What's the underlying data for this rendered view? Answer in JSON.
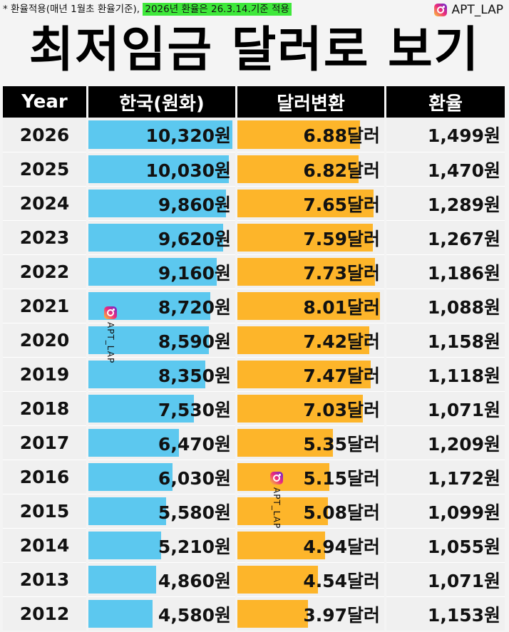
{
  "note": {
    "prefix": "* 환율적용(매년 1월초 환율기준),",
    "highlight": "2026년 환율은 26.3.14.기준 적용"
  },
  "brand": {
    "handle": "APT_LAP",
    "icon": "instagram-icon"
  },
  "title": "최저임금 달러로 보기",
  "colors": {
    "krw_bar": "#5cc8ef",
    "usd_bar": "#fdb52a",
    "header_bg": "#000000",
    "note_highlight": "#3ee83a"
  },
  "watermark": "APT_LAP",
  "chart_data": {
    "type": "table",
    "columns": [
      "Year",
      "한국(원화)",
      "달러변환",
      "환율"
    ],
    "rows": [
      {
        "year": "2026",
        "krw": 10320,
        "krw_label": "10,320원",
        "usd": 6.88,
        "usd_label": "6.88달러",
        "rate_label": "1,499원"
      },
      {
        "year": "2025",
        "krw": 10030,
        "krw_label": "10,030원",
        "usd": 6.82,
        "usd_label": "6.82달러",
        "rate_label": "1,470원"
      },
      {
        "year": "2024",
        "krw": 9860,
        "krw_label": "9,860원",
        "usd": 7.65,
        "usd_label": "7.65달러",
        "rate_label": "1,289원"
      },
      {
        "year": "2023",
        "krw": 9620,
        "krw_label": "9,620원",
        "usd": 7.59,
        "usd_label": "7.59달러",
        "rate_label": "1,267원"
      },
      {
        "year": "2022",
        "krw": 9160,
        "krw_label": "9,160원",
        "usd": 7.73,
        "usd_label": "7.73달러",
        "rate_label": "1,186원"
      },
      {
        "year": "2021",
        "krw": 8720,
        "krw_label": "8,720원",
        "usd": 8.01,
        "usd_label": "8.01달러",
        "rate_label": "1,088원"
      },
      {
        "year": "2020",
        "krw": 8590,
        "krw_label": "8,590원",
        "usd": 7.42,
        "usd_label": "7.42달러",
        "rate_label": "1,158원"
      },
      {
        "year": "2019",
        "krw": 8350,
        "krw_label": "8,350원",
        "usd": 7.47,
        "usd_label": "7.47달러",
        "rate_label": "1,118원"
      },
      {
        "year": "2018",
        "krw": 7530,
        "krw_label": "7,530원",
        "usd": 7.03,
        "usd_label": "7.03달러",
        "rate_label": "1,071원"
      },
      {
        "year": "2017",
        "krw": 6470,
        "krw_label": "6,470원",
        "usd": 5.35,
        "usd_label": "5.35달러",
        "rate_label": "1,209원"
      },
      {
        "year": "2016",
        "krw": 6030,
        "krw_label": "6,030원",
        "usd": 5.15,
        "usd_label": "5.15달러",
        "rate_label": "1,172원"
      },
      {
        "year": "2015",
        "krw": 5580,
        "krw_label": "5,580원",
        "usd": 5.08,
        "usd_label": "5.08달러",
        "rate_label": "1,099원"
      },
      {
        "year": "2014",
        "krw": 5210,
        "krw_label": "5,210원",
        "usd": 4.94,
        "usd_label": "4.94달러",
        "rate_label": "1,055원"
      },
      {
        "year": "2013",
        "krw": 4860,
        "krw_label": "4,860원",
        "usd": 4.54,
        "usd_label": "4.54달러",
        "rate_label": "1,071원"
      },
      {
        "year": "2012",
        "krw": 4580,
        "krw_label": "4,580원",
        "usd": 3.97,
        "usd_label": "3.97달러",
        "rate_label": "1,153원"
      }
    ]
  }
}
